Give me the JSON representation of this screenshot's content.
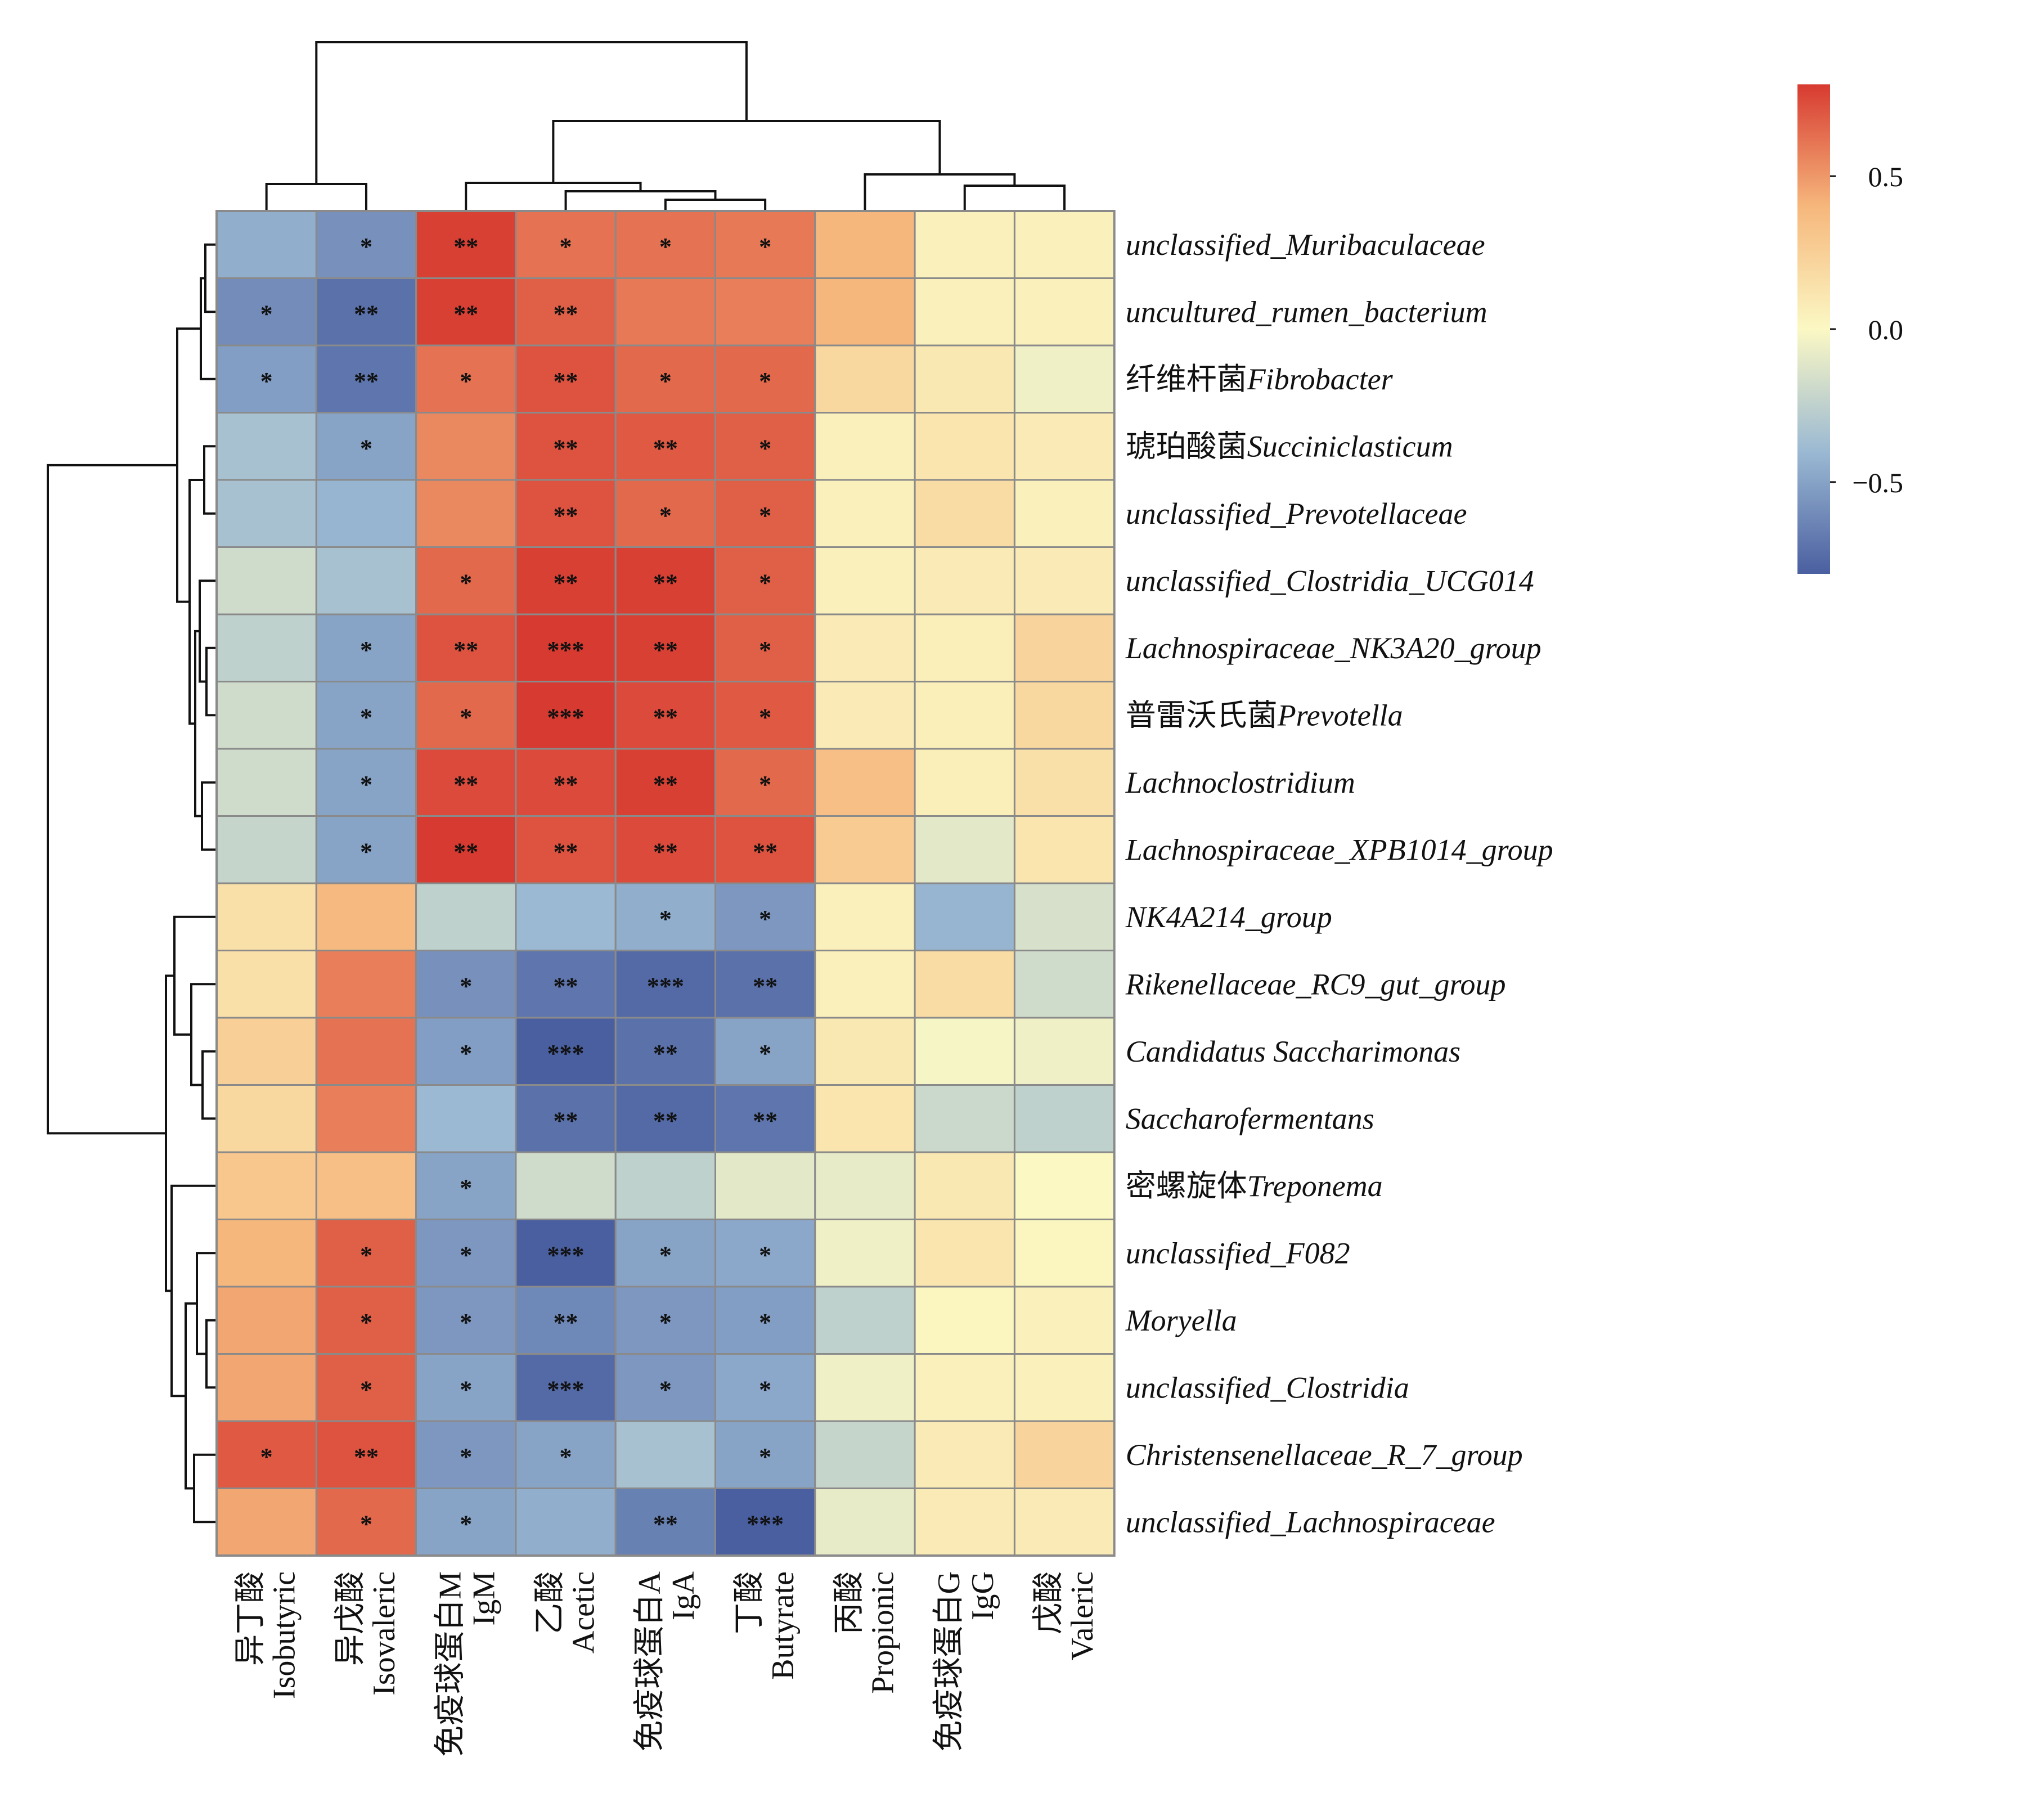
{
  "chart_data": {
    "type": "heatmap",
    "title": "",
    "columns": [
      {
        "zh": "异丁酸",
        "en": "Isobutyric"
      },
      {
        "zh": "异戊酸",
        "en": "Isovaleric"
      },
      {
        "zh": "免疫球蛋白M",
        "en": "IgM"
      },
      {
        "zh": "乙酸",
        "en": "Acetic"
      },
      {
        "zh": "免疫球蛋白A",
        "en": "IgA"
      },
      {
        "zh": "丁酸",
        "en": "Butyrate"
      },
      {
        "zh": "丙酸",
        "en": "Propionic"
      },
      {
        "zh": "免疫球蛋白G",
        "en": "IgG"
      },
      {
        "zh": "戊酸",
        "en": "Valeric"
      }
    ],
    "rows": [
      {
        "zh": "",
        "en": "unclassified_Muribaculaceae"
      },
      {
        "zh": "",
        "en": "uncultured_rumen_bacterium"
      },
      {
        "zh": "纤维杆菌",
        "en": "Fibrobacter"
      },
      {
        "zh": "琥珀酸菌",
        "en": "Succiniclasticum"
      },
      {
        "zh": "",
        "en": "unclassified_Prevotellaceae"
      },
      {
        "zh": "",
        "en": "unclassified_Clostridia_UCG014"
      },
      {
        "zh": "",
        "en": "Lachnospiraceae_NK3A20_group"
      },
      {
        "zh": "普雷沃氏菌",
        "en": "Prevotella"
      },
      {
        "zh": "",
        "en": "Lachnoclostridium"
      },
      {
        "zh": "",
        "en": "Lachnospiraceae_XPB1014_group"
      },
      {
        "zh": "",
        "en": "NK4A214_group"
      },
      {
        "zh": "",
        "en": "Rikenellaceae_RC9_gut_group"
      },
      {
        "zh": "",
        "en": "Candidatus Saccharimonas"
      },
      {
        "zh": "",
        "en": "Saccharofermentans"
      },
      {
        "zh": "密螺旋体",
        "en": "Treponema"
      },
      {
        "zh": "",
        "en": "unclassified_F082"
      },
      {
        "zh": "",
        "en": "Moryella"
      },
      {
        "zh": "",
        "en": "unclassified_Clostridia"
      },
      {
        "zh": "",
        "en": "Christensenellaceae_R_7_group"
      },
      {
        "zh": "",
        "en": "unclassified_Lachnospiraceae"
      }
    ],
    "values": [
      [
        -0.45,
        -0.58,
        0.78,
        0.62,
        0.62,
        0.6,
        0.4,
        0.05,
        0.05
      ],
      [
        -0.6,
        -0.72,
        0.78,
        0.68,
        0.6,
        0.58,
        0.4,
        0.05,
        0.05
      ],
      [
        -0.52,
        -0.7,
        0.62,
        0.72,
        0.65,
        0.65,
        0.2,
        0.1,
        -0.05
      ],
      [
        -0.35,
        -0.5,
        0.55,
        0.72,
        0.7,
        0.68,
        0.05,
        0.12,
        0.08
      ],
      [
        -0.35,
        -0.42,
        0.55,
        0.72,
        0.65,
        0.68,
        0.05,
        0.18,
        0.05
      ],
      [
        -0.18,
        -0.35,
        0.65,
        0.78,
        0.78,
        0.68,
        0.05,
        0.08,
        0.08
      ],
      [
        -0.25,
        -0.5,
        0.72,
        0.82,
        0.78,
        0.68,
        0.08,
        0.06,
        0.22
      ],
      [
        -0.18,
        -0.5,
        0.65,
        0.85,
        0.75,
        0.7,
        0.08,
        0.06,
        0.2
      ],
      [
        -0.18,
        -0.5,
        0.75,
        0.75,
        0.78,
        0.65,
        0.35,
        0.06,
        0.15
      ],
      [
        -0.22,
        -0.5,
        0.8,
        0.72,
        0.75,
        0.72,
        0.28,
        -0.1,
        0.12
      ],
      [
        0.15,
        0.38,
        -0.25,
        -0.4,
        -0.45,
        -0.55,
        0.05,
        -0.42,
        -0.15
      ],
      [
        0.15,
        0.58,
        -0.58,
        -0.7,
        -0.75,
        -0.72,
        0.05,
        0.18,
        -0.18
      ],
      [
        0.25,
        0.62,
        -0.52,
        -0.8,
        -0.72,
        -0.5,
        0.1,
        -0.02,
        -0.05
      ],
      [
        0.2,
        0.58,
        -0.4,
        -0.72,
        -0.75,
        -0.7,
        0.12,
        -0.2,
        -0.25
      ],
      [
        0.3,
        0.35,
        -0.5,
        -0.18,
        -0.25,
        -0.1,
        -0.08,
        0.1,
        0.0
      ],
      [
        0.4,
        0.68,
        -0.55,
        -0.8,
        -0.5,
        -0.48,
        -0.05,
        0.12,
        0.02
      ],
      [
        0.45,
        0.68,
        -0.55,
        -0.62,
        -0.55,
        -0.52,
        -0.25,
        0.02,
        0.05
      ],
      [
        0.45,
        0.68,
        -0.5,
        -0.75,
        -0.55,
        -0.48,
        -0.05,
        0.05,
        0.05
      ],
      [
        0.7,
        0.72,
        -0.55,
        -0.5,
        -0.35,
        -0.5,
        -0.22,
        0.08,
        0.22
      ],
      [
        0.45,
        0.65,
        -0.5,
        -0.45,
        -0.65,
        -0.8,
        -0.08,
        0.08,
        0.08
      ]
    ],
    "significance": [
      [
        "",
        "*",
        "**",
        "*",
        "*",
        "*",
        "",
        "",
        ""
      ],
      [
        "*",
        "**",
        "**",
        "**",
        "",
        "",
        "",
        "",
        ""
      ],
      [
        "*",
        "**",
        "*",
        "**",
        "*",
        "*",
        "",
        "",
        ""
      ],
      [
        "",
        "*",
        "",
        "**",
        "**",
        "*",
        "",
        "",
        ""
      ],
      [
        "",
        "",
        "",
        "**",
        "*",
        "*",
        "",
        "",
        ""
      ],
      [
        "",
        "",
        "*",
        "**",
        "**",
        "*",
        "",
        "",
        ""
      ],
      [
        "",
        "*",
        "**",
        "***",
        "**",
        "*",
        "",
        "",
        ""
      ],
      [
        "",
        "*",
        "*",
        "***",
        "**",
        "*",
        "",
        "",
        ""
      ],
      [
        "",
        "*",
        "**",
        "**",
        "**",
        "*",
        "",
        "",
        ""
      ],
      [
        "",
        "*",
        "**",
        "**",
        "**",
        "**",
        "",
        "",
        ""
      ],
      [
        "",
        "",
        "",
        "",
        "*",
        "*",
        "",
        "",
        ""
      ],
      [
        "",
        "",
        "*",
        "**",
        "***",
        "**",
        "",
        "",
        ""
      ],
      [
        "",
        "",
        "*",
        "***",
        "**",
        "*",
        "",
        "",
        ""
      ],
      [
        "",
        "",
        "",
        "**",
        "**",
        "**",
        "",
        "",
        ""
      ],
      [
        "",
        "",
        "*",
        "",
        "",
        "",
        "",
        "",
        ""
      ],
      [
        "",
        "*",
        "*",
        "***",
        "*",
        "*",
        "",
        "",
        ""
      ],
      [
        "",
        "*",
        "*",
        "**",
        "*",
        "*",
        "",
        "",
        ""
      ],
      [
        "",
        "*",
        "*",
        "***",
        "*",
        "*",
        "",
        "",
        ""
      ],
      [
        "*",
        "**",
        "*",
        "*",
        "",
        "*",
        "",
        "",
        ""
      ],
      [
        "",
        "*",
        "*",
        "",
        "**",
        "***",
        "",
        "",
        ""
      ]
    ],
    "colorbar": {
      "range": [
        -0.8,
        0.8
      ],
      "ticks": [
        0.5,
        0.0,
        -0.5
      ],
      "tick_labels": [
        "0.5",
        "0.0",
        "−0.5"
      ],
      "colors": [
        "#4a5fa0",
        "#9bb9d3",
        "#fbf8c4",
        "#f6b77c",
        "#d73a30"
      ]
    }
  }
}
